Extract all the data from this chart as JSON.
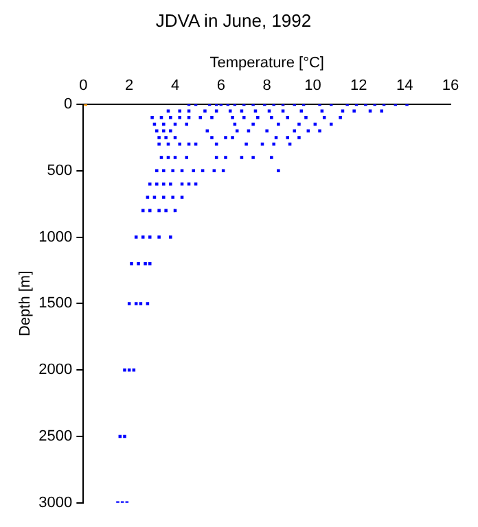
{
  "chart_data": {
    "type": "scatter",
    "title": "JDVA in June, 1992",
    "xlabel": "Temperature [°C]",
    "ylabel": "Depth [m]",
    "xlim": [
      0,
      16
    ],
    "xticks": [
      0,
      2,
      4,
      6,
      8,
      10,
      12,
      14,
      16
    ],
    "ylim": [
      3000,
      0
    ],
    "yticks": [
      0,
      500,
      1000,
      1500,
      2000,
      2500,
      3000
    ],
    "grid": false,
    "legend": false,
    "marker": "square",
    "series": [
      {
        "color": "#0000ff",
        "x": [
          4.6,
          4.9,
          5.5,
          5.8,
          6.0,
          6.3,
          6.6,
          7.0,
          7.4,
          7.9,
          8.3,
          8.7,
          9.2,
          9.6,
          10.3,
          10.8,
          11.5,
          11.9,
          12.3,
          12.7,
          13.1,
          13.6,
          14.1,
          3.7,
          4.2,
          4.6,
          5.3,
          5.8,
          6.4,
          6.9,
          7.5,
          8.1,
          8.7,
          9.5,
          10.4,
          11.3,
          11.8,
          12.5,
          13.0,
          3.0,
          3.4,
          3.8,
          4.2,
          4.6,
          5.1,
          5.6,
          6.5,
          7.0,
          7.6,
          8.2,
          8.9,
          9.7,
          10.5,
          11.2,
          3.1,
          3.5,
          4.0,
          4.5,
          6.6,
          7.4,
          8.5,
          9.4,
          10.1,
          10.8,
          3.2,
          3.5,
          3.8,
          5.4,
          6.7,
          7.2,
          8.0,
          9.2,
          9.8,
          10.3,
          3.3,
          3.6,
          4.0,
          5.6,
          6.2,
          6.5,
          8.4,
          8.9,
          9.4,
          3.3,
          3.7,
          4.2,
          4.6,
          4.9,
          5.8,
          7.1,
          7.8,
          8.3,
          9.0,
          3.4,
          3.7,
          4.0,
          4.5,
          5.8,
          6.2,
          6.9,
          7.4,
          8.2,
          3.2,
          3.5,
          3.9,
          4.3,
          4.8,
          5.2,
          5.7,
          6.1,
          8.5,
          2.9,
          3.2,
          3.5,
          3.8,
          4.3,
          4.6,
          4.9,
          2.8,
          3.1,
          3.5,
          3.9,
          4.3,
          2.6,
          2.9,
          3.3,
          3.6,
          4.0,
          2.3,
          2.6,
          2.9,
          3.3,
          3.8,
          2.1,
          2.4,
          2.7,
          2.9,
          2.0,
          2.3,
          2.5,
          2.8,
          1.8,
          2.0,
          2.2,
          1.6,
          1.8,
          1.5,
          1.7,
          1.9
        ],
        "values": [
          0,
          0,
          0,
          0,
          0,
          0,
          0,
          0,
          0,
          0,
          0,
          0,
          0,
          0,
          0,
          0,
          0,
          0,
          0,
          0,
          0,
          0,
          0,
          50,
          50,
          50,
          50,
          50,
          50,
          50,
          50,
          50,
          50,
          50,
          50,
          50,
          50,
          50,
          50,
          100,
          100,
          100,
          100,
          100,
          100,
          100,
          100,
          100,
          100,
          100,
          100,
          100,
          100,
          100,
          150,
          150,
          150,
          150,
          150,
          150,
          150,
          150,
          150,
          150,
          200,
          200,
          200,
          200,
          200,
          200,
          200,
          200,
          200,
          200,
          250,
          250,
          250,
          250,
          250,
          250,
          250,
          250,
          250,
          300,
          300,
          300,
          300,
          300,
          300,
          300,
          300,
          300,
          300,
          400,
          400,
          400,
          400,
          400,
          400,
          400,
          400,
          400,
          500,
          500,
          500,
          500,
          500,
          500,
          500,
          500,
          500,
          600,
          600,
          600,
          600,
          600,
          600,
          600,
          700,
          700,
          700,
          700,
          700,
          800,
          800,
          800,
          800,
          800,
          1000,
          1000,
          1000,
          1000,
          1000,
          1200,
          1200,
          1200,
          1200,
          1500,
          1500,
          1500,
          1500,
          2000,
          2000,
          2000,
          2500,
          2500,
          3000,
          3000,
          3000
        ]
      },
      {
        "color": "#ff9900",
        "x": [
          0.1,
          8.7
        ],
        "values": [
          0,
          0
        ]
      }
    ]
  }
}
